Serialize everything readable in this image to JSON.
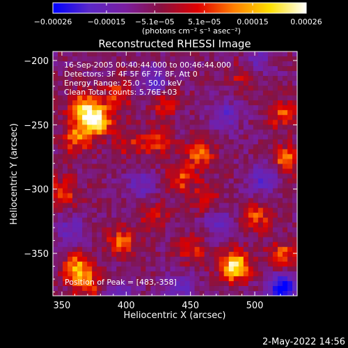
{
  "chart_data": {
    "type": "heatmap",
    "title": "Reconstructed RHESSI Image",
    "xlabel": "Heliocentric X (arcsec)",
    "ylabel": "Heliocentric Y (arcsec)",
    "xlim": [
      343,
      533
    ],
    "ylim": [
      -383,
      -193
    ],
    "x_ticks": [
      350,
      400,
      450,
      500
    ],
    "y_ticks": [
      -200,
      -250,
      -300,
      -350
    ],
    "x_tick_labels": [
      "350",
      "400",
      "450",
      "500"
    ],
    "y_tick_labels": [
      "−200",
      "−250",
      "−300",
      "−350"
    ],
    "colorbar": {
      "range": [
        -0.00026,
        0.00026
      ],
      "ticks": [
        -0.00026,
        -0.00015,
        -5.1e-05,
        5.1e-05,
        0.00015,
        0.00026
      ],
      "tick_labels": [
        "−0.00026",
        "−0.00015",
        "−5.1e−05",
        "5.1e−05",
        "0.00015",
        "0.00026"
      ],
      "unit_label": "(photons cm⁻² s⁻¹ asec⁻²)",
      "colors": [
        "#0000ff",
        "#5a28c8",
        "#7a1ea0",
        "#8a1040",
        "#e00000",
        "#ff7f00",
        "#ffe000",
        "#ffffff"
      ]
    },
    "annotations": {
      "time_range": "16-Sep-2005 00:40:44.000 to 00:46:44.000",
      "detectors": "Detectors: 3F 4F 5F 6F 7F 8F, Att 0",
      "energy": "Energy Range: 25.0 – 50.0 keV",
      "clean": "Clean    Total counts: 5.76E+03",
      "peak": "Position of Peak = [483,-358]"
    },
    "peak": [
      483,
      -358
    ],
    "hotspots": [
      {
        "x": 375,
        "y": -245,
        "value": 0.00026
      },
      {
        "x": 365,
        "y": -235,
        "value": 0.0002
      },
      {
        "x": 360,
        "y": -258,
        "value": 0.00015
      },
      {
        "x": 392,
        "y": -225,
        "value": 0.00012
      },
      {
        "x": 400,
        "y": -262,
        "value": 9e-05
      },
      {
        "x": 422,
        "y": -262,
        "value": 0.0001
      },
      {
        "x": 428,
        "y": -230,
        "value": 0.0001
      },
      {
        "x": 440,
        "y": -290,
        "value": 0.00012
      },
      {
        "x": 455,
        "y": -270,
        "value": 0.00014
      },
      {
        "x": 460,
        "y": -305,
        "value": 0.0001
      },
      {
        "x": 488,
        "y": -210,
        "value": 8e-05
      },
      {
        "x": 520,
        "y": -240,
        "value": 0.00012
      },
      {
        "x": 523,
        "y": -275,
        "value": 0.00015
      },
      {
        "x": 350,
        "y": -300,
        "value": 0.00012
      },
      {
        "x": 360,
        "y": -360,
        "value": 0.00018
      },
      {
        "x": 395,
        "y": -340,
        "value": 0.00014
      },
      {
        "x": 420,
        "y": -320,
        "value": 8e-05
      },
      {
        "x": 450,
        "y": -345,
        "value": 0.0001
      },
      {
        "x": 483,
        "y": -358,
        "value": 0.00026
      },
      {
        "x": 500,
        "y": -320,
        "value": 0.00012
      },
      {
        "x": 520,
        "y": -350,
        "value": 0.00014
      },
      {
        "x": 368,
        "y": -372,
        "value": 0.00011
      }
    ],
    "coldspots": [
      {
        "x": 420,
        "y": -215,
        "value": -0.00015
      },
      {
        "x": 475,
        "y": -240,
        "value": -0.00012
      },
      {
        "x": 505,
        "y": -290,
        "value": -0.00014
      },
      {
        "x": 470,
        "y": -325,
        "value": -0.00012
      },
      {
        "x": 520,
        "y": -375,
        "value": -0.00026
      },
      {
        "x": 355,
        "y": -330,
        "value": -0.0001
      },
      {
        "x": 410,
        "y": -295,
        "value": -0.00011
      },
      {
        "x": 395,
        "y": -378,
        "value": -0.0001
      },
      {
        "x": 440,
        "y": -375,
        "value": -0.00012
      },
      {
        "x": 500,
        "y": -198,
        "value": -0.0001
      }
    ]
  },
  "timestamp": "2-May-2022 14:56"
}
